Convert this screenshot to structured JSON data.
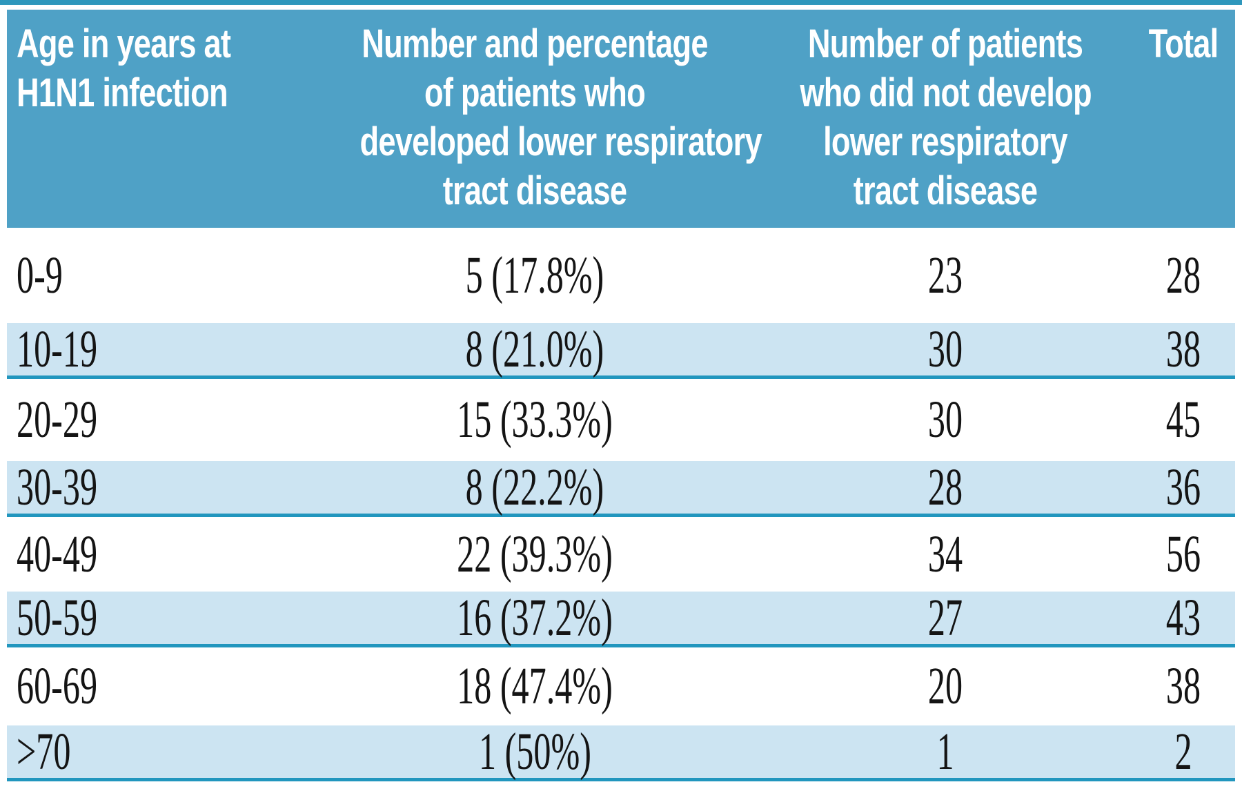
{
  "table": {
    "header": {
      "age": [
        "Age in years at",
        "H1N1 infection"
      ],
      "developed": [
        "Number and percentage",
        "of patients who",
        "developed lower respiratory",
        "tract disease"
      ],
      "not_developed": [
        "Number of patients",
        "who did not develop",
        "lower respiratory",
        "tract disease"
      ],
      "total": [
        "Total"
      ]
    },
    "rows": [
      {
        "age": "0-9",
        "developed": "5 (17.8%)",
        "not_developed": "23",
        "total": "28"
      },
      {
        "age": "10-19",
        "developed": "8 (21.0%)",
        "not_developed": "30",
        "total": "38"
      },
      {
        "age": "20-29",
        "developed": "15 (33.3%)",
        "not_developed": "30",
        "total": "45"
      },
      {
        "age": "30-39",
        "developed": "8 (22.2%)",
        "not_developed": "28",
        "total": "36"
      },
      {
        "age": "40-49",
        "developed": "22 (39.3%)",
        "not_developed": "34",
        "total": "56"
      },
      {
        "age": "50-59",
        "developed": "16 (37.2%)",
        "not_developed": "27",
        "total": "43"
      },
      {
        "age": "60-69",
        "developed": "18 (47.4%)",
        "not_developed": "20",
        "total": "38"
      },
      {
        "age": ">70",
        "developed": "1 (50%)",
        "not_developed": "1",
        "total": "2"
      }
    ],
    "colors": {
      "header_bg": "#4fa1c6",
      "shaded_row_bg": "#cce4f2",
      "divider_teal": "#2196be",
      "header_text": "#ffffff",
      "data_text": "#141414"
    }
  }
}
